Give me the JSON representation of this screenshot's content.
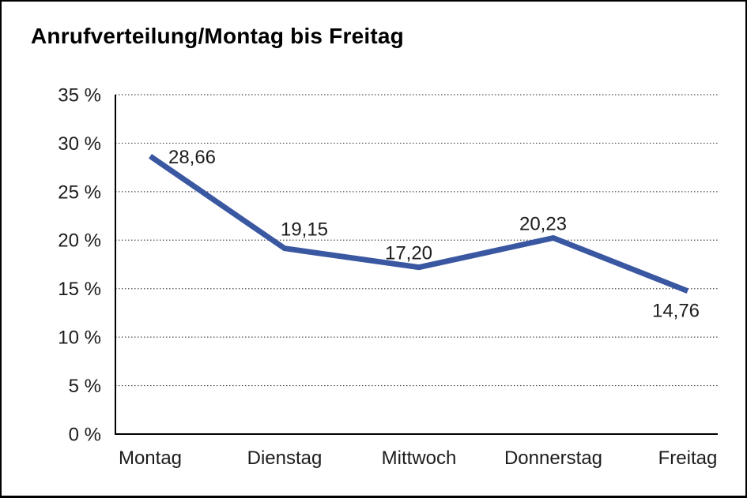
{
  "window": {
    "background_color": "#ffffff",
    "border_color": "#000000"
  },
  "chart_data": {
    "type": "line",
    "title": "Anrufverteilung/Montag bis Freitag",
    "categories": [
      "Montag",
      "Dienstag",
      "Mittwoch",
      "Donnerstag",
      "Freitag"
    ],
    "values": [
      28.66,
      19.15,
      17.2,
      20.23,
      14.76
    ],
    "point_labels": [
      "28,66",
      "19,15",
      "17,20",
      "20,23",
      "14,76"
    ],
    "unit": "%",
    "xlabel": "",
    "ylabel": "",
    "ylim": [
      0,
      35
    ],
    "ytick_step": 5,
    "ytick_labels": [
      "0 %",
      "5 %",
      "10 %",
      "15 %",
      "20 %",
      "25 %",
      "30 %",
      "35 %"
    ],
    "grid": "horizontal-dotted",
    "legend_position": "none",
    "line_color": "#3A57A2",
    "axis_color": "#000000",
    "grid_color": "#4d4d4d",
    "label_color": "#1c1c1c"
  }
}
